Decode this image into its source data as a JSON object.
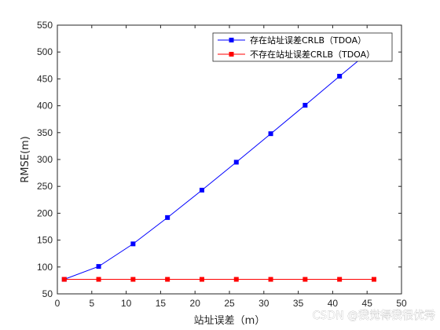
{
  "chart_data": {
    "type": "line",
    "xlabel": "站址误差（m）",
    "ylabel": "RMSE(m)",
    "xlim": [
      0,
      50
    ],
    "ylim": [
      50,
      550
    ],
    "xticks": [
      0,
      5,
      10,
      15,
      20,
      25,
      30,
      35,
      40,
      45,
      50
    ],
    "yticks": [
      50,
      100,
      150,
      200,
      250,
      300,
      350,
      400,
      450,
      500,
      550
    ],
    "grid": false,
    "legend_position": "top-right",
    "series": [
      {
        "name": "存在站址误差CRLB（TDOA）",
        "color": "#0000ff",
        "marker": "square",
        "x": [
          1,
          6,
          11,
          16,
          21,
          26,
          31,
          36,
          41,
          46
        ],
        "y": [
          77,
          101,
          143,
          192,
          243,
          295,
          348,
          401,
          455,
          508
        ]
      },
      {
        "name": "不存在站址误差CRLB（TDOA）",
        "color": "#ff0000",
        "marker": "square",
        "x": [
          1,
          6,
          11,
          16,
          21,
          26,
          31,
          36,
          41,
          46
        ],
        "y": [
          77,
          77,
          77,
          77,
          77,
          77,
          77,
          77,
          77,
          77
        ]
      }
    ]
  },
  "watermark": "CSDN @我觉得我很优秀"
}
